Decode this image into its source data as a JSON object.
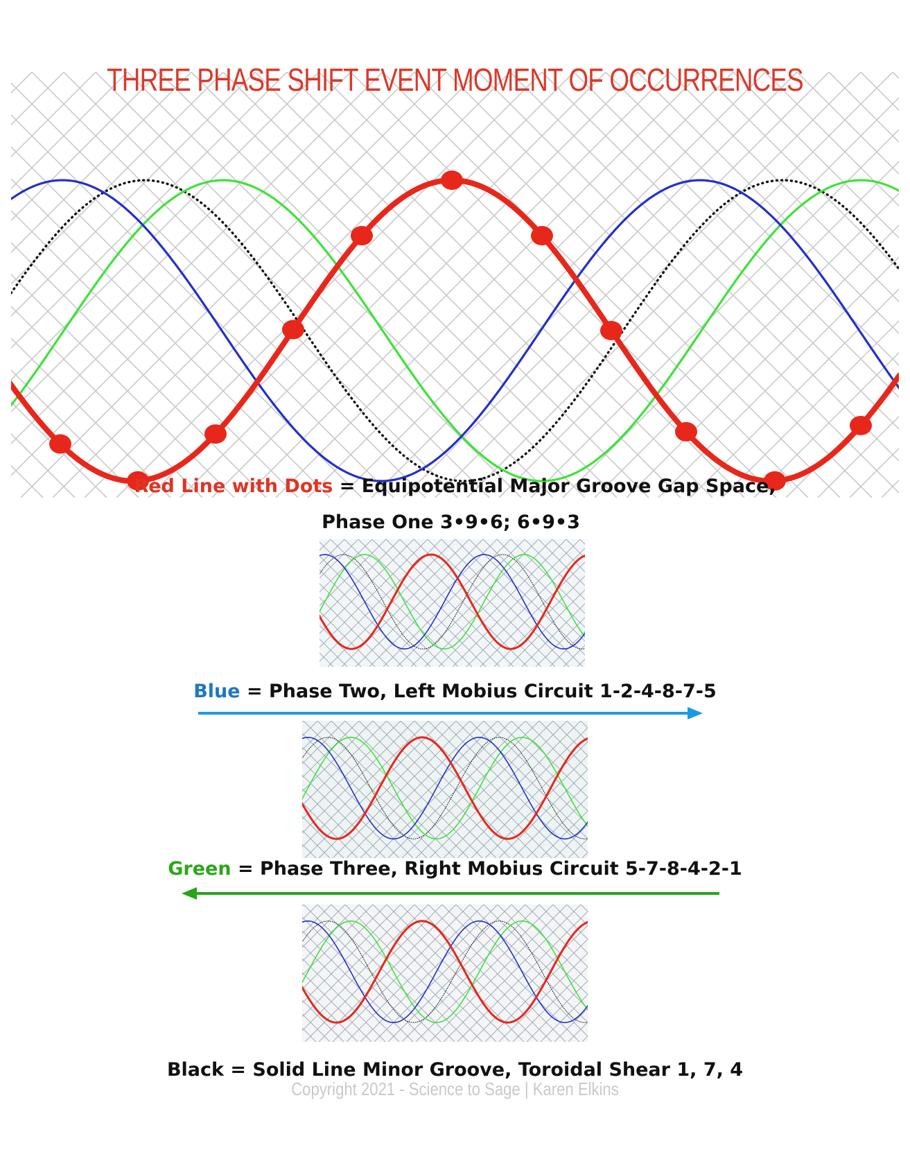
{
  "title": "THREE PHASE SHIFT EVENT MOMENT OF OCCURRENCES",
  "red_caption": {
    "lead": "Red  Line with Dots",
    "rest": "= Equipotential Major Groove Gap Space,",
    "line2": "Phase One 3•9•6;  6•9•3"
  },
  "blue_caption": {
    "lead": "Blue",
    "rest": "= Phase Two, Left Mobius Circuit  1-2-4-8-7-5"
  },
  "green_caption": {
    "lead": "Green",
    "rest": "= Phase Three,  Right Mobius  Circuit 5-7-8-4-2-1"
  },
  "black_caption": "Black = Solid Line Minor Groove,  Toroidal Shear 1, 7, 4",
  "copyright": "Copyright 2021 - Science to Sage | Karen Elkins",
  "colors": {
    "red": "#e8271b",
    "blue": "#2430c8",
    "green": "#3fe23a",
    "black": "#111111",
    "blue_arrow": "#1a9be0",
    "green_arrow": "#27a51c",
    "grid": "#c8c8c8"
  },
  "arrows": {
    "blue_direction": "right",
    "green_direction": "left"
  }
}
